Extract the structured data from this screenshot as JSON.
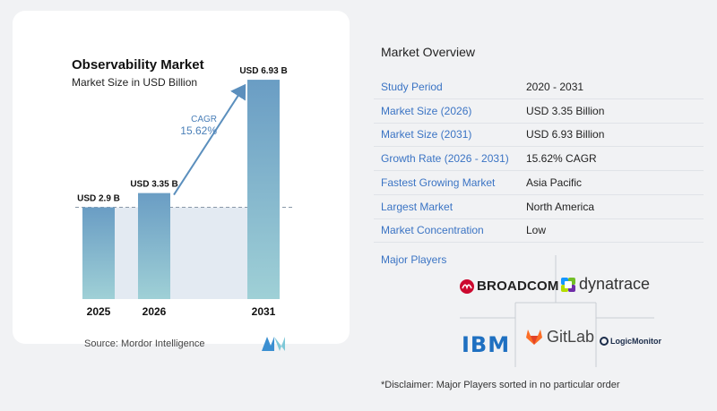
{
  "chart": {
    "title": "Observability Market",
    "subtitle": "Market Size in USD Billion",
    "cagr_label": "CAGR",
    "cagr_value": "15.62%",
    "source": "Source:  Mordor Intelligence"
  },
  "chart_data": {
    "type": "bar",
    "categories": [
      "2025",
      "2026",
      "2031"
    ],
    "values": [
      2.9,
      3.35,
      6.93
    ],
    "value_labels": [
      "USD 2.9 B",
      "USD 3.35 B",
      "USD 6.93 B"
    ],
    "title": "Observability Market",
    "subtitle": "Market Size in USD Billion",
    "xlabel": "",
    "ylabel": "",
    "ylim": [
      0,
      7.3
    ],
    "grid": false,
    "colors": {
      "bar_top": "#6a9dc4",
      "bar_bottom": "#9fd0d6",
      "arrow": "#5b8fbd",
      "band": "#e3eaf2"
    }
  },
  "overview": {
    "title": "Market Overview",
    "rows": [
      {
        "label": "Study Period",
        "value": "2020 - 2031"
      },
      {
        "label": "Market Size (2026)",
        "value": "USD 3.35 Billion"
      },
      {
        "label": "Market Size (2031)",
        "value": "USD 6.93 Billion"
      },
      {
        "label": "Growth Rate (2026 - 2031)",
        "value": "15.62% CAGR"
      },
      {
        "label": "Fastest Growing Market",
        "value": "Asia Pacific"
      },
      {
        "label": "Largest Market",
        "value": "North America"
      },
      {
        "label": "Market Concentration",
        "value": "Low"
      }
    ]
  },
  "players": {
    "title": "Major Players",
    "logos": [
      {
        "name": "BROADCOM",
        "icon": "broadcom-logo",
        "color": "#cc092f"
      },
      {
        "name": "dynatrace",
        "icon": "dynatrace-logo",
        "color": "#1496ff"
      },
      {
        "name": "IBM",
        "icon": "ibm-logo",
        "color": "#1f70c1"
      },
      {
        "name": "GitLab",
        "icon": "gitlab-logo",
        "color": "#fc6d26"
      },
      {
        "name": "LogicMonitor",
        "icon": "logicmonitor-logo",
        "color": "#1a2b49"
      }
    ]
  },
  "disclaimer": "*Disclaimer: Major Players sorted in no particular order"
}
